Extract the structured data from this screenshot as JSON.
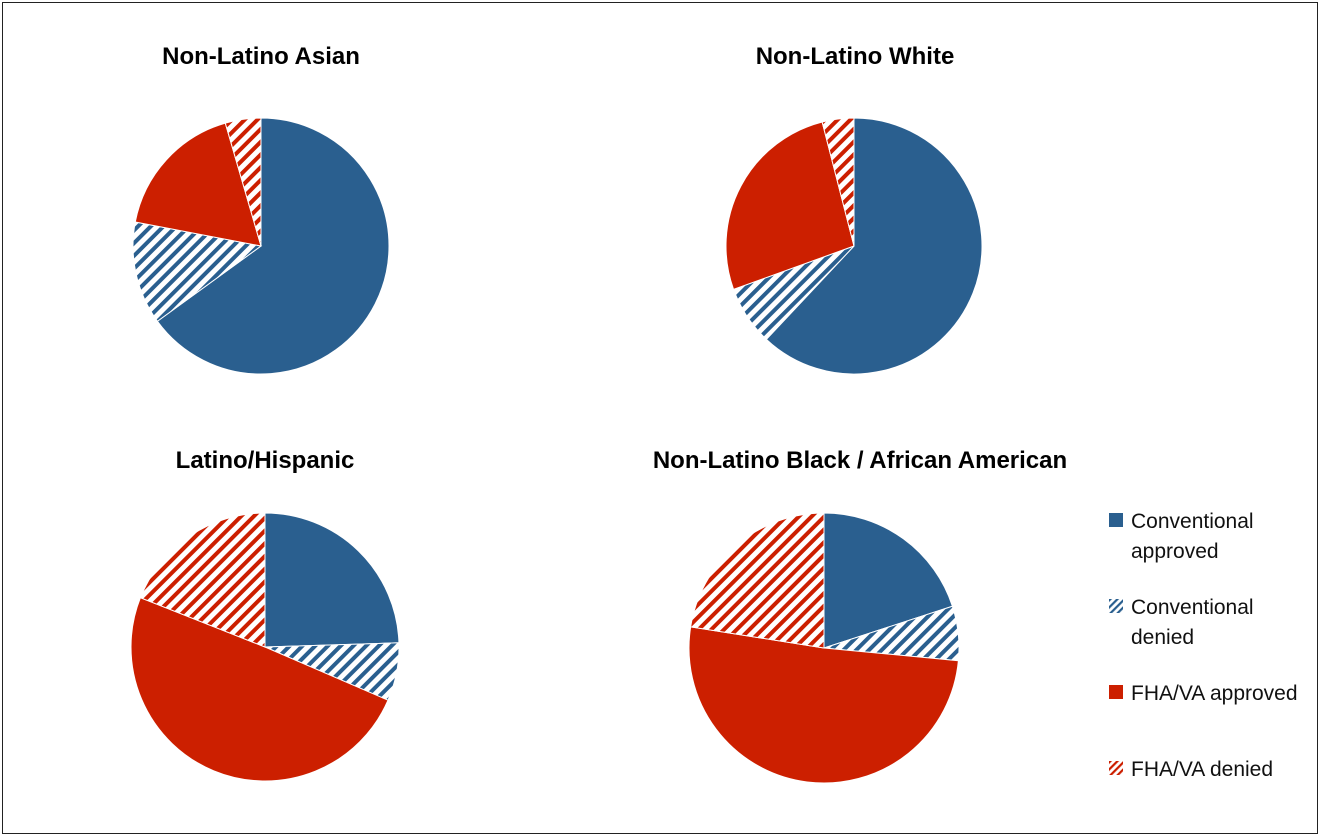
{
  "chart_data": [
    {
      "type": "pie",
      "title": "Non-Latino Asian",
      "categories": [
        "Conventional approved",
        "Conventional denied",
        "FHA/VA approved",
        "FHA/VA denied"
      ],
      "values": [
        65.0,
        13.0,
        17.5,
        4.5
      ]
    },
    {
      "type": "pie",
      "title": "Non-Latino White",
      "categories": [
        "Conventional approved",
        "Conventional denied",
        "FHA/VA approved",
        "FHA/VA denied"
      ],
      "values": [
        62.0,
        7.5,
        26.5,
        4.0
      ]
    },
    {
      "type": "pie",
      "title": "Latino/Hispanic",
      "categories": [
        "Conventional approved",
        "Conventional denied",
        "FHA/VA approved",
        "FHA/VA denied"
      ],
      "values": [
        24.5,
        7.0,
        49.5,
        19.0
      ]
    },
    {
      "type": "pie",
      "title": "Non-Latino Black / African American",
      "categories": [
        "Conventional approved",
        "Conventional denied",
        "FHA/VA approved",
        "FHA/VA denied"
      ],
      "values": [
        20.0,
        6.5,
        51.0,
        22.5
      ]
    }
  ],
  "legend": {
    "placement": "bottom-right",
    "items": [
      {
        "label": "Conventional\napproved",
        "style": "solid",
        "color": "#2a5f8f"
      },
      {
        "label": "Conventional\ndenied",
        "style": "hatched",
        "color": "#2a5f8f"
      },
      {
        "label": "FHA/VA approved",
        "style": "solid",
        "color": "#cc1f00"
      },
      {
        "label": "FHA/VA denied",
        "style": "hatched",
        "color": "#cc1f00"
      }
    ]
  },
  "colors": {
    "conventional": "#2a5f8f",
    "fha_va": "#cc1f00"
  }
}
